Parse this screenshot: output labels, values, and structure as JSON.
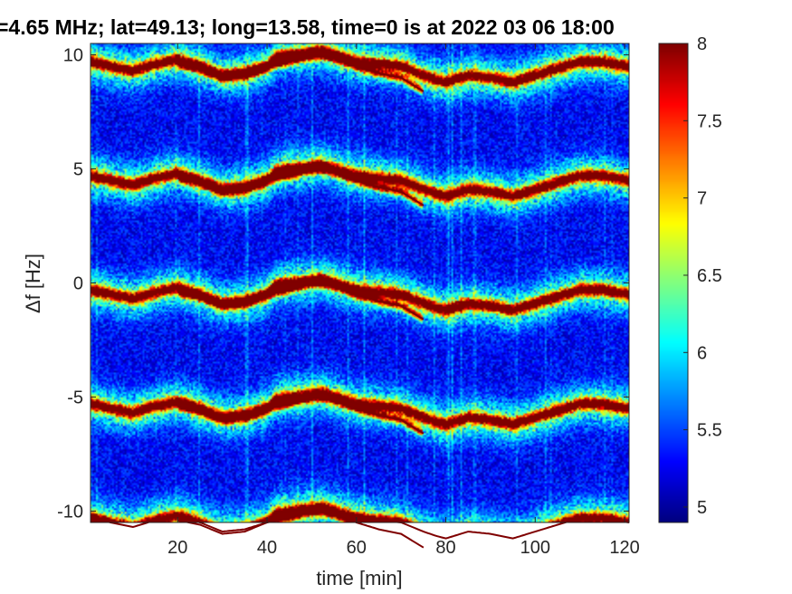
{
  "chart_data": {
    "type": "heatmap",
    "title": "=4.65 MHz;  lat=49.13; long=13.58, time=0 is at 2022 03 06 18:00",
    "xlabel": "time [min]",
    "ylabel": "Δf [Hz]",
    "xlim": [
      0.5,
      121
    ],
    "ylim": [
      -10.5,
      10.5
    ],
    "xticks": [
      20,
      40,
      60,
      80,
      100,
      120
    ],
    "yticks": [
      10,
      5,
      0,
      -5,
      -10
    ],
    "xtick_labels": [
      "20",
      "40",
      "60",
      "80",
      "100",
      "120"
    ],
    "ytick_labels": [
      "10",
      "5",
      "0",
      "-5",
      "-10"
    ],
    "colormap": "jet",
    "clim": [
      4.9,
      8.0
    ],
    "colorbar_ticks": [
      8,
      7.5,
      7,
      6.5,
      6,
      5.5,
      5
    ],
    "colorbar_tick_labels": [
      "8",
      "7.5",
      "7",
      "6.5",
      "6",
      "5.5",
      "5"
    ],
    "harmonic_offsets": [
      -10,
      -5,
      0,
      5,
      10
    ],
    "series": [
      {
        "x": [
          0.5,
          5,
          10,
          15,
          20,
          25,
          30,
          35,
          40,
          42,
          45,
          50,
          52,
          55,
          60,
          65,
          70,
          75,
          78,
          80,
          85,
          90,
          95,
          100,
          105,
          110,
          115,
          121
        ],
        "y": [
          -0.3,
          -0.5,
          -0.7,
          -0.4,
          -0.2,
          -0.5,
          -0.9,
          -0.8,
          -0.5,
          -0.1,
          0.0,
          0.1,
          0.2,
          0.0,
          -0.3,
          -0.4,
          -0.5,
          -0.9,
          -1.1,
          -1.2,
          -0.9,
          -1.0,
          -1.2,
          -0.9,
          -0.6,
          -0.3,
          -0.3,
          -0.5
        ]
      },
      {
        "x": [
          20,
          25,
          30,
          35,
          40,
          45,
          50,
          55,
          60,
          65,
          70,
          75
        ],
        "y": [
          -0.4,
          -0.6,
          -1.0,
          -0.9,
          -0.5,
          -0.3,
          0.0,
          -0.1,
          -0.5,
          -0.8,
          -1.0,
          -1.6
        ]
      }
    ],
    "colors": {
      "jet_low": "#00007f",
      "jet_mid": "#7fff7f",
      "jet_high": "#7f0000",
      "background": "#ffffff"
    }
  }
}
